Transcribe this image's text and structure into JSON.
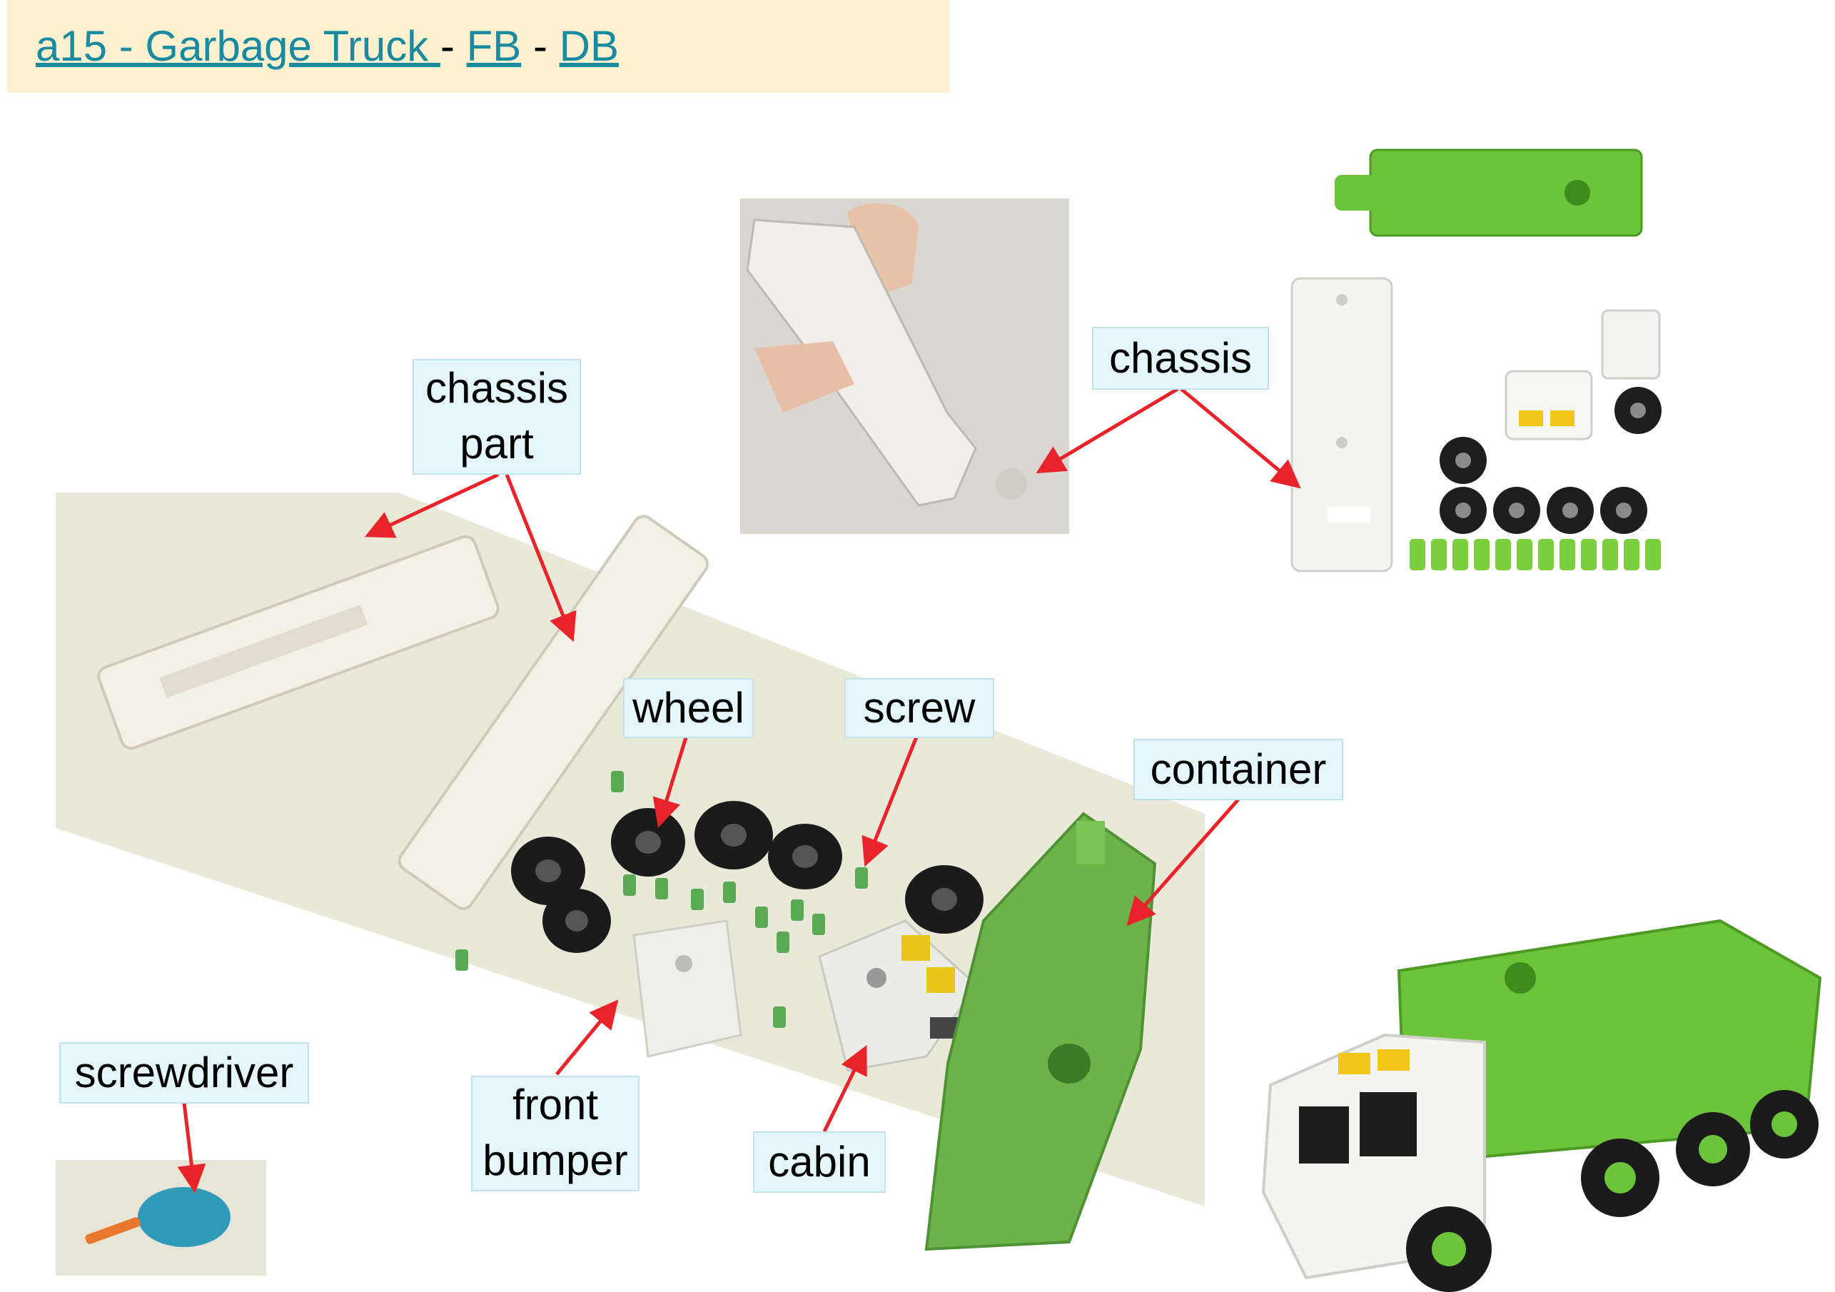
{
  "header": {
    "title_link": "a15 - Garbage Truck ",
    "separator": "-",
    "fb_link": "FB",
    "db_link": "DB"
  },
  "labels": {
    "chassis_part_line1": "chassis",
    "chassis_part_line2": "part",
    "chassis": "chassis",
    "wheel": "wheel",
    "screw": "screw",
    "container": "container",
    "screwdriver": "screwdriver",
    "front_bumper_line1": "front",
    "front_bumper_line2": "bumper",
    "cabin": "cabin"
  },
  "colors": {
    "arrow": "#e8232a",
    "label_bg": "#e4f6fb",
    "link": "#1a8aa0",
    "header_bg": "#fdf0cf",
    "toy_green": "#6cc43a",
    "toy_white": "#f2f2ee"
  }
}
